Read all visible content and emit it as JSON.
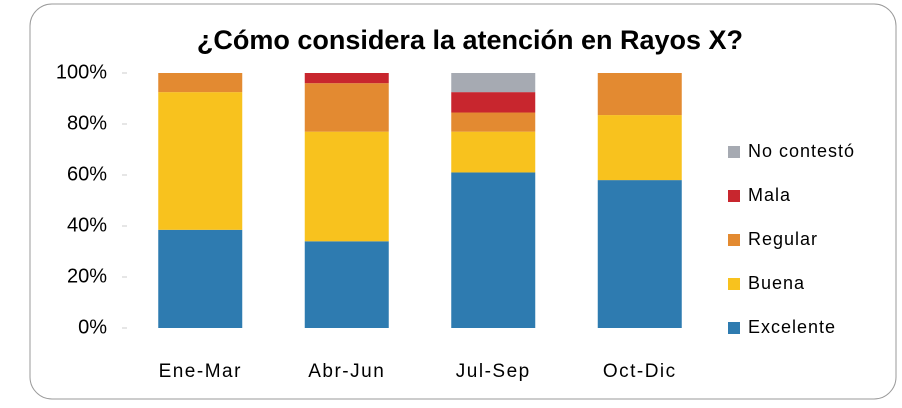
{
  "chart_data": {
    "type": "stacked_bar",
    "title": "¿Cómo considera la atención en Rayos X?",
    "categories": [
      "Ene-Mar",
      "Abr-Jun",
      "Jul-Sep",
      "Oct-Dic"
    ],
    "series": [
      {
        "name": "Excelente",
        "color": "#2e7bb0",
        "values": [
          38.5,
          34,
          61,
          58
        ]
      },
      {
        "name": "Buena",
        "color": "#f8c21e",
        "values": [
          54,
          43,
          16,
          25.5
        ]
      },
      {
        "name": "Regular",
        "color": "#e38a31",
        "values": [
          7.5,
          19,
          7.5,
          16.5
        ]
      },
      {
        "name": "Mala",
        "color": "#c8262e",
        "values": [
          0,
          4,
          8,
          0
        ]
      },
      {
        "name": "No contestó",
        "color": "#a6aab2",
        "values": [
          0,
          0,
          7.5,
          0
        ]
      }
    ],
    "ylim": [
      0,
      100
    ],
    "yticks": [
      {
        "value": 0,
        "label": "0%"
      },
      {
        "value": 20,
        "label": "20%"
      },
      {
        "value": 40,
        "label": "40%"
      },
      {
        "value": 60,
        "label": "60%"
      },
      {
        "value": 80,
        "label": "80%"
      },
      {
        "value": 100,
        "label": "100%"
      }
    ],
    "legend": "right"
  }
}
